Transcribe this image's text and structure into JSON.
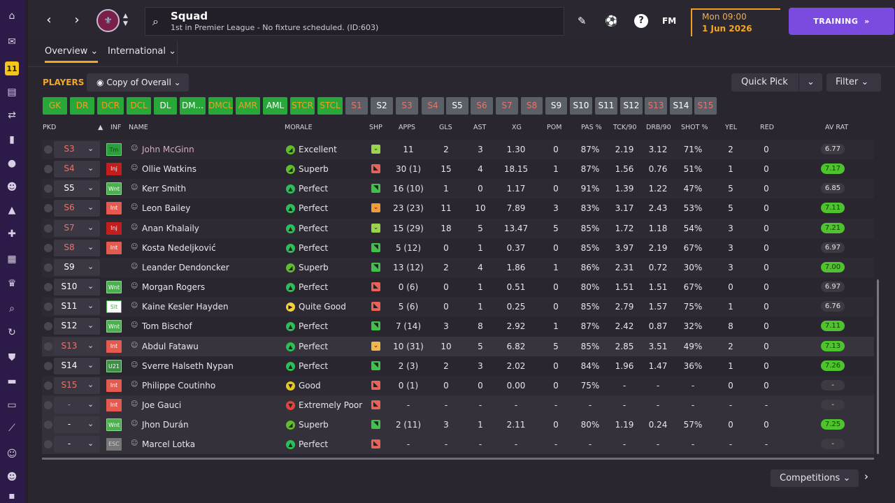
{
  "header": {
    "title": "Squad",
    "subtitle": "1st in Premier League - No fixture scheduled. (ID:603)",
    "time": "Mon 09:00",
    "date": "1 Jun 2026",
    "fm_logo": "FM",
    "training_label": "TRAINING",
    "help_label": "?",
    "back_label": "‹",
    "forward_label": "›"
  },
  "tabs": [
    {
      "label": "Overview",
      "active": true
    },
    {
      "label": "International",
      "active": false
    }
  ],
  "toolbar": {
    "players_label": "PLAYERS",
    "view_label": "Copy of Overall",
    "quick_pick_label": "Quick Pick",
    "filter_label": "Filter",
    "competitions_label": "Competitions"
  },
  "position_chips": [
    {
      "label": "GK",
      "style": "g"
    },
    {
      "label": "DR",
      "style": "g"
    },
    {
      "label": "DCR",
      "style": "g"
    },
    {
      "label": "DCL",
      "style": "g"
    },
    {
      "label": "DL",
      "style": "gw"
    },
    {
      "label": "DM...",
      "style": "gw"
    },
    {
      "label": "DMCL",
      "style": "g"
    },
    {
      "label": "AMR",
      "style": "g"
    },
    {
      "label": "AML",
      "style": "gw"
    },
    {
      "label": "STCR",
      "style": "g"
    },
    {
      "label": "STCL",
      "style": "g"
    },
    {
      "label": "S1",
      "style": "x"
    },
    {
      "label": "S2",
      "style": "xw"
    },
    {
      "label": "S3",
      "style": "x"
    },
    {
      "label": "S4",
      "style": "x"
    },
    {
      "label": "S5",
      "style": "xw"
    },
    {
      "label": "S6",
      "style": "x"
    },
    {
      "label": "S7",
      "style": "x"
    },
    {
      "label": "S8",
      "style": "x"
    },
    {
      "label": "S9",
      "style": "xw"
    },
    {
      "label": "S10",
      "style": "xw"
    },
    {
      "label": "S11",
      "style": "xw"
    },
    {
      "label": "S12",
      "style": "xw"
    },
    {
      "label": "S13",
      "style": "x"
    },
    {
      "label": "S14",
      "style": "xw"
    },
    {
      "label": "S15",
      "style": "x"
    }
  ],
  "columns": {
    "pkd": "PKD",
    "inf": "INF",
    "name": "NAME",
    "morale": "MORALE",
    "shp": "SHP",
    "apps": "APPS",
    "gls": "GLS",
    "ast": "AST",
    "xg": "XG",
    "pom": "POM",
    "pas": "PAS %",
    "tck": "TCK/90",
    "drb": "DRB/90",
    "shot": "SHOT %",
    "yel": "YEL",
    "red": "RED",
    "avrat": "AV RAT"
  },
  "colors": {
    "accent": "#f5a623",
    "training": "#7b4be0",
    "good_rating": "#4ec32d",
    "morale_perfect": "#2bbf55",
    "morale_superb": "#5fbf2b",
    "morale_quite_good": "#f5d23b",
    "morale_good": "#e6c823",
    "morale_extremely_poor": "#e5443a",
    "status_red": "#e9736c"
  },
  "players": [
    {
      "pos": "S3",
      "pos_color": "red",
      "inf": "Tm",
      "inf_style": "tm",
      "name": "John McGinn",
      "morale_icon": "superb",
      "morale": "Excellent",
      "shp": "up",
      "apps": "11",
      "gls": "2",
      "ast": "3",
      "xg": "1.30",
      "pom": "0",
      "pas": "87%",
      "tck": "2.19",
      "drb": "3.12",
      "shot": "71%",
      "yel": "2",
      "red": "0",
      "avrat": "6.77",
      "avrat_style": "n",
      "name_color": "#d8a8c8"
    },
    {
      "pos": "S4",
      "pos_color": "red",
      "inf": "Inj",
      "inf_style": "inj",
      "name": "Ollie Watkins",
      "morale_icon": "superb",
      "morale": "Superb",
      "shp": "down",
      "apps": "30 (1)",
      "gls": "15",
      "ast": "4",
      "xg": "18.15",
      "pom": "1",
      "pas": "87%",
      "tck": "1.56",
      "drb": "0.76",
      "shot": "51%",
      "yel": "1",
      "red": "0",
      "avrat": "7.17",
      "avrat_style": "g"
    },
    {
      "pos": "S5",
      "pos_color": "white",
      "inf": "Wnt",
      "inf_style": "wnt",
      "name": "Kerr Smith",
      "morale_icon": "perfect",
      "morale": "Perfect",
      "shp": "upr",
      "apps": "16 (10)",
      "gls": "1",
      "ast": "0",
      "xg": "1.17",
      "pom": "0",
      "pas": "91%",
      "tck": "1.39",
      "drb": "1.22",
      "shot": "47%",
      "yel": "5",
      "red": "0",
      "avrat": "6.85",
      "avrat_style": "n"
    },
    {
      "pos": "S6",
      "pos_color": "red",
      "inf": "Int",
      "inf_style": "int",
      "name": "Leon Bailey",
      "morale_icon": "perfect",
      "morale": "Perfect",
      "shp": "orange",
      "apps": "23 (23)",
      "gls": "11",
      "ast": "10",
      "xg": "7.89",
      "pom": "3",
      "pas": "83%",
      "tck": "3.17",
      "drb": "2.43",
      "shot": "53%",
      "yel": "5",
      "red": "0",
      "avrat": "7.11",
      "avrat_style": "g"
    },
    {
      "pos": "S7",
      "pos_color": "red",
      "inf": "Inj",
      "inf_style": "inj",
      "name": "Anan Khalaily",
      "morale_icon": "perfect",
      "morale": "Perfect",
      "shp": "up",
      "apps": "15 (29)",
      "gls": "18",
      "ast": "5",
      "xg": "13.47",
      "pom": "5",
      "pas": "85%",
      "tck": "1.72",
      "drb": "1.18",
      "shot": "54%",
      "yel": "3",
      "red": "0",
      "avrat": "7.21",
      "avrat_style": "g"
    },
    {
      "pos": "S8",
      "pos_color": "red",
      "inf": "Int",
      "inf_style": "int",
      "name": "Kosta Nedeljković",
      "morale_icon": "perfect",
      "morale": "Perfect",
      "shp": "upr",
      "apps": "5 (12)",
      "gls": "0",
      "ast": "1",
      "xg": "0.37",
      "pom": "0",
      "pas": "85%",
      "tck": "3.97",
      "drb": "2.19",
      "shot": "67%",
      "yel": "3",
      "red": "0",
      "avrat": "6.97",
      "avrat_style": "n"
    },
    {
      "pos": "S9",
      "pos_color": "white",
      "inf": "",
      "inf_style": "",
      "name": "Leander Dendoncker",
      "morale_icon": "superb",
      "morale": "Superb",
      "shp": "upr",
      "apps": "13 (12)",
      "gls": "2",
      "ast": "4",
      "xg": "1.86",
      "pom": "1",
      "pas": "86%",
      "tck": "2.31",
      "drb": "0.72",
      "shot": "30%",
      "yel": "3",
      "red": "0",
      "avrat": "7.00",
      "avrat_style": "g"
    },
    {
      "pos": "S10",
      "pos_color": "white",
      "inf": "Wnt",
      "inf_style": "wnt",
      "name": "Morgan Rogers",
      "morale_icon": "perfect",
      "morale": "Perfect",
      "shp": "down",
      "apps": "0 (6)",
      "gls": "0",
      "ast": "1",
      "xg": "0.51",
      "pom": "0",
      "pas": "80%",
      "tck": "1.51",
      "drb": "1.51",
      "shot": "67%",
      "yel": "0",
      "red": "0",
      "avrat": "6.97",
      "avrat_style": "n"
    },
    {
      "pos": "S11",
      "pos_color": "white",
      "inf": "Slt",
      "inf_style": "slt",
      "name": "Kaine Kesler Hayden",
      "morale_icon": "quitegood",
      "morale": "Quite Good",
      "shp": "down",
      "apps": "5 (6)",
      "gls": "0",
      "ast": "1",
      "xg": "0.25",
      "pom": "0",
      "pas": "85%",
      "tck": "2.79",
      "drb": "1.57",
      "shot": "75%",
      "yel": "1",
      "red": "0",
      "avrat": "6.76",
      "avrat_style": "n"
    },
    {
      "pos": "S12",
      "pos_color": "white",
      "inf": "Wnt",
      "inf_style": "wnt",
      "name": "Tom Bischof",
      "morale_icon": "perfect",
      "morale": "Perfect",
      "shp": "upr",
      "apps": "7 (14)",
      "gls": "3",
      "ast": "8",
      "xg": "2.92",
      "pom": "1",
      "pas": "87%",
      "tck": "2.42",
      "drb": "0.87",
      "shot": "32%",
      "yel": "8",
      "red": "0",
      "avrat": "7.11",
      "avrat_style": "g"
    },
    {
      "pos": "S13",
      "pos_color": "red",
      "inf": "Int",
      "inf_style": "int",
      "name": "Abdul Fatawu",
      "morale_icon": "perfect",
      "morale": "Perfect",
      "shp": "orangeup",
      "apps": "10 (31)",
      "gls": "10",
      "ast": "5",
      "xg": "6.82",
      "pom": "5",
      "pas": "85%",
      "tck": "2.85",
      "drb": "3.51",
      "shot": "49%",
      "yel": "2",
      "red": "0",
      "avrat": "7.13",
      "avrat_style": "g"
    },
    {
      "pos": "S14",
      "pos_color": "white",
      "inf": "U21",
      "inf_style": "u21",
      "name": "Sverre Halseth Nypan",
      "morale_icon": "perfect",
      "morale": "Perfect",
      "shp": "upr",
      "apps": "2 (3)",
      "gls": "2",
      "ast": "3",
      "xg": "2.02",
      "pom": "0",
      "pas": "84%",
      "tck": "1.96",
      "drb": "1.47",
      "shot": "36%",
      "yel": "1",
      "red": "0",
      "avrat": "7.26",
      "avrat_style": "g"
    },
    {
      "pos": "S15",
      "pos_color": "red",
      "inf": "Int",
      "inf_style": "int",
      "name": "Philippe Coutinho",
      "morale_icon": "good",
      "morale": "Good",
      "shp": "down",
      "apps": "0 (1)",
      "gls": "0",
      "ast": "0",
      "xg": "0.00",
      "pom": "0",
      "pas": "75%",
      "tck": "-",
      "drb": "-",
      "shot": "-",
      "yel": "0",
      "red": "0",
      "avrat": "-",
      "avrat_style": "n"
    },
    {
      "pos": "-",
      "pos_color": "red",
      "inf": "Int",
      "inf_style": "int",
      "name": "Joe Gauci",
      "morale_icon": "extremelypoor",
      "morale": "Extremely Poor",
      "shp": "down",
      "apps": "-",
      "gls": "-",
      "ast": "-",
      "xg": "-",
      "pom": "-",
      "pas": "-",
      "tck": "-",
      "drb": "-",
      "shot": "-",
      "yel": "-",
      "red": "-",
      "avrat": "-",
      "avrat_style": "n"
    },
    {
      "pos": "-",
      "pos_color": "white",
      "inf": "Wnt",
      "inf_style": "wnt",
      "name": "Jhon Durán",
      "morale_icon": "superb",
      "morale": "Superb",
      "shp": "upr",
      "apps": "2 (11)",
      "gls": "3",
      "ast": "1",
      "xg": "2.11",
      "pom": "0",
      "pas": "80%",
      "tck": "1.19",
      "drb": "0.24",
      "shot": "57%",
      "yel": "0",
      "red": "0",
      "avrat": "7.25",
      "avrat_style": "g"
    },
    {
      "pos": "-",
      "pos_color": "white",
      "inf": "ESC",
      "inf_style": "esc",
      "name": "Marcel Lotka",
      "morale_icon": "perfect",
      "morale": "Perfect",
      "shp": "down",
      "apps": "-",
      "gls": "-",
      "ast": "-",
      "xg": "-",
      "pom": "-",
      "pas": "-",
      "tck": "-",
      "drb": "-",
      "shot": "-",
      "yel": "-",
      "red": "-",
      "avrat": "-",
      "avrat_style": "n"
    }
  ]
}
